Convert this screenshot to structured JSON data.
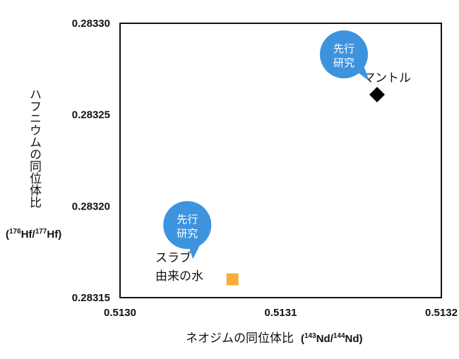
{
  "chart_data": {
    "type": "scatter",
    "title": "",
    "xlabel": "ネオジムの同位体比",
    "xlabel_ratio": {
      "num_sup": "143",
      "num": "Nd",
      "den_sup": "144",
      "den": "Nd"
    },
    "ylabel": "ハフニウムの同位体比",
    "ylabel_ratio": {
      "num_sup": "176",
      "num": "Hf",
      "den_sup": "177",
      "den": "Hf"
    },
    "xlim": [
      0.513,
      0.5132
    ],
    "ylim": [
      0.28315,
      0.2833
    ],
    "xticks": [
      "0.5130",
      "0.5131",
      "0.5132"
    ],
    "yticks": [
      "0.28315",
      "0.28320",
      "0.28325",
      "0.28330"
    ],
    "xtick_values": [
      0.513,
      0.5131,
      0.5132
    ],
    "ytick_values": [
      0.28315,
      0.2832,
      0.28325,
      0.2833
    ],
    "grid": false,
    "points": [
      {
        "label_lines": [
          "マントル"
        ],
        "x": 0.51316,
        "y": 0.283261,
        "marker": "diamond",
        "color": "#000000",
        "badge_lines": [
          "先行",
          "研究"
        ]
      },
      {
        "label_lines": [
          "スラブ",
          "由来の水"
        ],
        "x": 0.51307,
        "y": 0.28316,
        "marker": "square",
        "color": "#F9AD3A",
        "badge_lines": [
          "先行",
          "研究"
        ]
      }
    ],
    "badge_color": "#3E93DE"
  }
}
